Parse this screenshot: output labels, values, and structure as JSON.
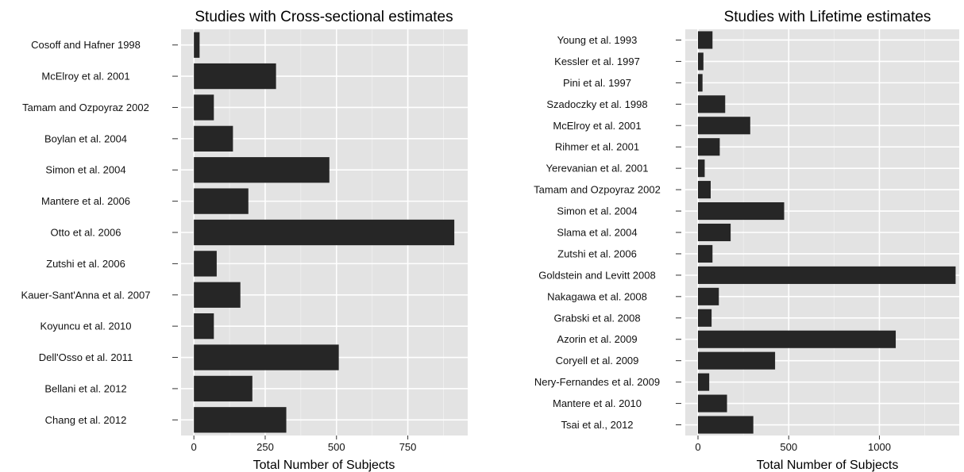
{
  "chart_data": [
    {
      "type": "bar",
      "orientation": "horizontal",
      "title": "Studies with Cross-sectional estimates",
      "xlabel": "Total Number of Subjects",
      "ylabel": "",
      "xlim": [
        -45,
        960
      ],
      "xticks": [
        0,
        250,
        500,
        750
      ],
      "grid": true,
      "legend": "none",
      "bar_color": "#262626",
      "categories": [
        "Cosoff and Hafner 1998",
        "McElroy et al. 2001",
        "Tamam and Ozpoyraz 2002",
        "Boylan et al. 2004",
        "Simon et al. 2004",
        "Mantere et al. 2006",
        "Otto et al. 2006",
        "Zutshi et al. 2006",
        "Kauer-Sant'Anna et al. 2007",
        "Koyuncu et al. 2010",
        "Dell'Osso et al. 2011",
        "Bellani et al. 2012",
        "Chang et al. 2012"
      ],
      "values": [
        20,
        288,
        70,
        137,
        475,
        191,
        913,
        80,
        163,
        70,
        508,
        205,
        324
      ]
    },
    {
      "type": "bar",
      "orientation": "horizontal",
      "title": "Studies with Lifetime estimates",
      "xlabel": "Total Number of Subjects",
      "ylabel": "",
      "xlim": [
        -70,
        1440
      ],
      "xticks": [
        0,
        500,
        1000
      ],
      "grid": true,
      "legend": "none",
      "bar_color": "#262626",
      "categories": [
        "Young et al. 1993",
        "Kessler et al. 1997",
        "Pini et al. 1997",
        "Szadoczky et al. 1998",
        "McElroy et al. 2001",
        "Rihmer et al. 2001",
        "Yerevanian et al. 2001",
        "Tamam and Ozpoyraz 2002",
        "Simon et al. 2004",
        "Slama et al. 2004",
        "Zutshi et al. 2006",
        "Goldstein and Levitt 2008",
        "Nakagawa et al. 2008",
        "Grabski et al. 2008",
        "Azorin et al. 2009",
        "Coryell et al. 2009",
        "Nery-Fernandes et al. 2009",
        "Mantere et al. 2010",
        "Tsai et al., 2012"
      ],
      "values": [
        80,
        30,
        25,
        150,
        288,
        120,
        37,
        70,
        475,
        180,
        80,
        1420,
        115,
        75,
        1090,
        425,
        62,
        160,
        305
      ]
    }
  ]
}
